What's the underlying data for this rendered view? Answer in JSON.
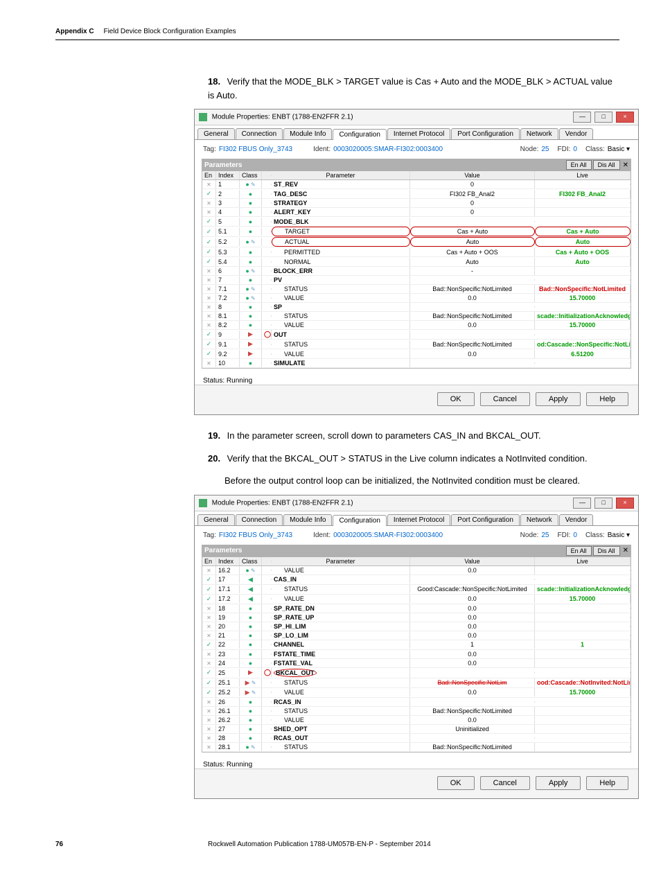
{
  "header": {
    "appendix": "Appendix C",
    "title": "Field Device Block Configuration Examples"
  },
  "steps": {
    "s18": {
      "num": "18.",
      "text": "Verify that the MODE_BLK > TARGET value is Cas + Auto and the MODE_BLK > ACTUAL value is Auto."
    },
    "s19": {
      "num": "19.",
      "text": "In the parameter screen, scroll down to parameters CAS_IN and BKCAL_OUT."
    },
    "s20": {
      "num": "20.",
      "text": "Verify that the BKCAL_OUT > STATUS in the Live column indicates a NotInvited condition."
    },
    "s20b": "Before the output control loop can be initialized, the NotInvited condition must be cleared."
  },
  "dialog": {
    "title": "Module Properties: ENBT (1788-EN2FFR 2.1)",
    "tabs": [
      "General",
      "Connection",
      "Module Info",
      "Configuration",
      "Internet Protocol",
      "Port Configuration",
      "Network",
      "Vendor"
    ],
    "info": {
      "tag_label": "Tag:",
      "tag_value": "FI302 FBUS Only_3743",
      "ident_label": "Ident:",
      "ident_value": "0003020005:SMAR-FI302:0003400",
      "node_label": "Node:",
      "node_value": "25",
      "fdi_label": "FDI:",
      "fdi_value": "0",
      "class_label": "Class:",
      "class_value": "Basic"
    },
    "params_title": "Parameters",
    "btn_enall": "En All",
    "btn_disall": "Dis All",
    "gridhdr": {
      "en": "En",
      "index": "Index",
      "class": "Class",
      "blank": "",
      "param": "Parameter",
      "value": "Value",
      "live": "Live"
    },
    "status": "Status: Running",
    "buttons": {
      "ok": "OK",
      "cancel": "Cancel",
      "apply": "Apply",
      "help": "Help"
    }
  },
  "grid1": [
    {
      "en": "x",
      "idx": "1",
      "cls": "in",
      "pen": "1",
      "p": "ST_REV",
      "v": "0",
      "lv": "",
      "bold": 1
    },
    {
      "en": "c",
      "idx": "2",
      "cls": "in",
      "p": "TAG_DESC",
      "v": "FI302 FB_Anal2",
      "lv": "FI302 FB_Anal2",
      "lvcls": "live-green",
      "bold": 1
    },
    {
      "en": "x",
      "idx": "3",
      "cls": "in",
      "p": "STRATEGY",
      "v": "0",
      "lv": "",
      "bold": 1
    },
    {
      "en": "x",
      "idx": "4",
      "cls": "in",
      "p": "ALERT_KEY",
      "v": "0",
      "lv": "",
      "bold": 1
    },
    {
      "en": "c",
      "idx": "5",
      "cls": "in",
      "p": "MODE_BLK",
      "v": "",
      "lv": "",
      "bold": 1
    },
    {
      "en": "c",
      "idx": "5.1",
      "cls": "in",
      "p": "TARGET",
      "child": 1,
      "v": "Cas + Auto",
      "lv": "Cas + Auto",
      "lvcls": "live-green",
      "redmark": 1
    },
    {
      "en": "c",
      "idx": "5.2",
      "cls": "in",
      "pen": "1",
      "p": "ACTUAL",
      "child": 1,
      "v": "Auto",
      "lv": "Auto",
      "lvcls": "live-green",
      "redmark": 1
    },
    {
      "en": "c",
      "idx": "5.3",
      "cls": "in",
      "p": "PERMITTED",
      "child": 1,
      "v": "Cas + Auto + OOS",
      "lv": "Cas + Auto + OOS",
      "lvcls": "live-green"
    },
    {
      "en": "c",
      "idx": "5.4",
      "cls": "in",
      "p": "NORMAL",
      "child": 1,
      "v": "Auto",
      "lv": "Auto",
      "lvcls": "live-green"
    },
    {
      "en": "x",
      "idx": "6",
      "cls": "in",
      "pen": "1",
      "p": "BLOCK_ERR",
      "v": "-",
      "lv": "",
      "bold": 1
    },
    {
      "en": "x",
      "idx": "7",
      "cls": "in",
      "p": "PV",
      "v": "",
      "lv": "",
      "bold": 1
    },
    {
      "en": "x",
      "idx": "7.1",
      "cls": "in",
      "pen": "1",
      "p": "STATUS",
      "child": 1,
      "v": "Bad::NonSpecific:NotLimited",
      "lv": "Bad::NonSpecific:NotLimited",
      "lvcls": "live-red"
    },
    {
      "en": "x",
      "idx": "7.2",
      "cls": "in",
      "pen": "1",
      "p": "VALUE",
      "child": 1,
      "v": "0.0",
      "lv": "15.70000",
      "lvcls": "live-green"
    },
    {
      "en": "x",
      "idx": "8",
      "cls": "in",
      "p": "SP",
      "v": "",
      "lv": "",
      "bold": 1
    },
    {
      "en": "x",
      "idx": "8.1",
      "cls": "in",
      "p": "STATUS",
      "child": 1,
      "v": "Bad::NonSpecific:NotLimited",
      "lv": "scade::InitializationAcknowledge:N",
      "lvcls": "live-green"
    },
    {
      "en": "x",
      "idx": "8.2",
      "cls": "in",
      "p": "VALUE",
      "child": 1,
      "v": "0.0",
      "lv": "15.70000",
      "lvcls": "live-green"
    },
    {
      "en": "c",
      "idx": "9",
      "cls": "out",
      "p": "OUT",
      "v": "",
      "lv": "",
      "bold": 1,
      "outmark": 1
    },
    {
      "en": "c",
      "idx": "9.1",
      "cls": "out",
      "p": "STATUS",
      "child": 1,
      "v": "Bad::NonSpecific:NotLimited",
      "lv": "od:Cascade::NonSpecific:NotLimit",
      "lvcls": "live-green"
    },
    {
      "en": "c",
      "idx": "9.2",
      "cls": "out",
      "p": "VALUE",
      "child": 1,
      "v": "0.0",
      "lv": "6.51200",
      "lvcls": "live-green"
    },
    {
      "en": "x",
      "idx": "10",
      "cls": "in",
      "p": "SIMULATE",
      "v": "",
      "lv": "",
      "bold": 1
    }
  ],
  "grid2": [
    {
      "en": "x",
      "idx": "16.2",
      "cls": "in",
      "pen": "1",
      "p": "VALUE",
      "child": 1,
      "v": "0.0",
      "lv": ""
    },
    {
      "en": "c",
      "idx": "17",
      "cls": "inarrow",
      "p": "CAS_IN",
      "v": "",
      "lv": "",
      "bold": 1
    },
    {
      "en": "c",
      "idx": "17.1",
      "cls": "inarrow",
      "p": "STATUS",
      "child": 1,
      "v": "Good:Cascade::NonSpecific:NotLimited",
      "lv": "scade::InitializationAcknowledge:N",
      "lvcls": "live-green"
    },
    {
      "en": "c",
      "idx": "17.2",
      "cls": "inarrow",
      "p": "VALUE",
      "child": 1,
      "v": "0.0",
      "lv": "15.70000",
      "lvcls": "live-green"
    },
    {
      "en": "x",
      "idx": "18",
      "cls": "in",
      "p": "SP_RATE_DN",
      "v": "0.0",
      "lv": "",
      "bold": 1
    },
    {
      "en": "x",
      "idx": "19",
      "cls": "in",
      "p": "SP_RATE_UP",
      "v": "0.0",
      "lv": "",
      "bold": 1
    },
    {
      "en": "x",
      "idx": "20",
      "cls": "in",
      "p": "SP_HI_LIM",
      "v": "0.0",
      "lv": "",
      "bold": 1
    },
    {
      "en": "x",
      "idx": "21",
      "cls": "in",
      "p": "SP_LO_LIM",
      "v": "0.0",
      "lv": "",
      "bold": 1
    },
    {
      "en": "c",
      "idx": "22",
      "cls": "in",
      "p": "CHANNEL",
      "v": "1",
      "lv": "1",
      "lvcls": "live-green",
      "bold": 1
    },
    {
      "en": "x",
      "idx": "23",
      "cls": "in",
      "p": "FSTATE_TIME",
      "v": "0.0",
      "lv": "",
      "bold": 1
    },
    {
      "en": "x",
      "idx": "24",
      "cls": "in",
      "p": "FSTATE_VAL",
      "v": "0.0",
      "lv": "",
      "bold": 1
    },
    {
      "en": "c",
      "idx": "25",
      "cls": "out",
      "p": "BKCAL_OUT",
      "v": "",
      "lv": "",
      "bold": 1,
      "outmark": 1,
      "ellipse": 1
    },
    {
      "en": "c",
      "idx": "25.1",
      "cls": "out",
      "pen": "1",
      "p": "STATUS",
      "child": 1,
      "v": "Bad::NonSpecific:NotLim",
      "vstrike": 1,
      "lv": "ood:Cascade::NotInvited:NotLimite",
      "lvcls": "live-red"
    },
    {
      "en": "c",
      "idx": "25.2",
      "cls": "out",
      "pen": "1",
      "p": "VALUE",
      "child": 1,
      "v": "0.0",
      "lv": "15.70000",
      "lvcls": "live-green"
    },
    {
      "en": "x",
      "idx": "26",
      "cls": "in",
      "p": "RCAS_IN",
      "v": "",
      "lv": "",
      "bold": 1
    },
    {
      "en": "x",
      "idx": "26.1",
      "cls": "in",
      "p": "STATUS",
      "child": 1,
      "v": "Bad::NonSpecific:NotLimited",
      "lv": ""
    },
    {
      "en": "x",
      "idx": "26.2",
      "cls": "in",
      "p": "VALUE",
      "child": 1,
      "v": "0.0",
      "lv": ""
    },
    {
      "en": "x",
      "idx": "27",
      "cls": "in",
      "p": "SHED_OPT",
      "v": "Uninitialized",
      "lv": "",
      "bold": 1
    },
    {
      "en": "x",
      "idx": "28",
      "cls": "in",
      "p": "RCAS_OUT",
      "v": "",
      "lv": "",
      "bold": 1
    },
    {
      "en": "x",
      "idx": "28.1",
      "cls": "in",
      "pen": "1",
      "p": "STATUS",
      "child": 1,
      "v": "Bad::NonSpecific:NotLimited",
      "lv": ""
    }
  ],
  "footer": {
    "page": "76",
    "pub": "Rockwell Automation Publication 1788-UM057B-EN-P - September 2014"
  }
}
